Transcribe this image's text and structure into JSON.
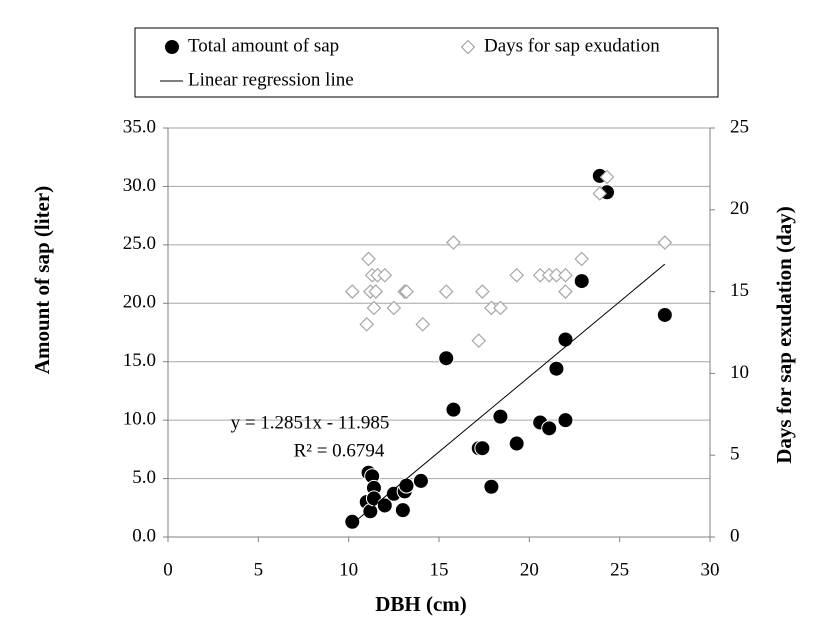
{
  "chart_data": {
    "type": "scatter",
    "xlabel": "DBH (cm)",
    "ylabel": "Amount of sap (liter)",
    "y2label": "Days for sap exudation (day)",
    "xlim": [
      0,
      30
    ],
    "xticks": [
      0,
      5,
      10,
      15,
      20,
      25,
      30
    ],
    "ylim": [
      0,
      35
    ],
    "yticks": [
      {
        "value": 0,
        "label": "0.0"
      },
      {
        "value": 5,
        "label": "5.0"
      },
      {
        "value": 10,
        "label": "10.0"
      },
      {
        "value": 15,
        "label": "15.0"
      },
      {
        "value": 20,
        "label": "20.0"
      },
      {
        "value": 25,
        "label": "25.0"
      },
      {
        "value": 30,
        "label": "30.0"
      },
      {
        "value": 35,
        "label": "35.0"
      }
    ],
    "y2lim": [
      0,
      25
    ],
    "y2ticks": [
      0,
      5,
      10,
      15,
      20,
      25
    ],
    "grid": true,
    "legend": "top",
    "series": [
      {
        "name": "Total amount of sap",
        "type": "scatter",
        "marker": "circle",
        "color": "#000000",
        "x": [
          10.2,
          11.0,
          11.1,
          11.3,
          11.2,
          11.4,
          11.4,
          12.0,
          12.5,
          13.0,
          13.1,
          13.2,
          14.0,
          15.4,
          15.8,
          17.2,
          17.4,
          17.9,
          18.4,
          19.3,
          20.6,
          21.1,
          21.5,
          22.0,
          22.0,
          22.9,
          23.9,
          24.3,
          27.5
        ],
        "values": [
          1.3,
          3.0,
          5.5,
          5.2,
          2.2,
          4.2,
          3.3,
          2.7,
          3.7,
          2.3,
          3.9,
          4.4,
          4.8,
          15.3,
          10.9,
          7.6,
          7.6,
          4.3,
          10.3,
          8.0,
          9.8,
          9.3,
          14.4,
          16.9,
          10.0,
          21.9,
          30.9,
          29.5,
          19.0
        ]
      },
      {
        "name": "Days for sap exudation",
        "type": "scatter",
        "marker": "diamond",
        "axis": "y2",
        "color": "#a6a6a6",
        "x": [
          10.2,
          11.0,
          11.1,
          11.2,
          11.3,
          11.4,
          11.5,
          11.6,
          12.0,
          12.5,
          13.1,
          13.2,
          14.1,
          15.4,
          15.8,
          17.2,
          17.4,
          17.9,
          18.4,
          19.3,
          20.6,
          21.1,
          21.5,
          22.0,
          22.0,
          22.9,
          23.9,
          24.3,
          27.5
        ],
        "values": [
          15,
          13,
          17,
          15,
          16,
          14,
          15,
          16,
          16,
          14,
          15,
          15,
          13,
          15,
          18,
          12,
          15,
          14,
          14,
          16,
          16,
          16,
          16,
          16,
          15,
          17,
          21,
          22,
          18
        ]
      },
      {
        "name": "Linear regression line",
        "type": "line",
        "color": "#000000",
        "x": [
          10.2,
          27.5
        ],
        "values": [
          1.12,
          23.35
        ]
      }
    ],
    "annotations": [
      "y = 1.2851x - 11.985",
      "R² = 0.6794"
    ]
  }
}
